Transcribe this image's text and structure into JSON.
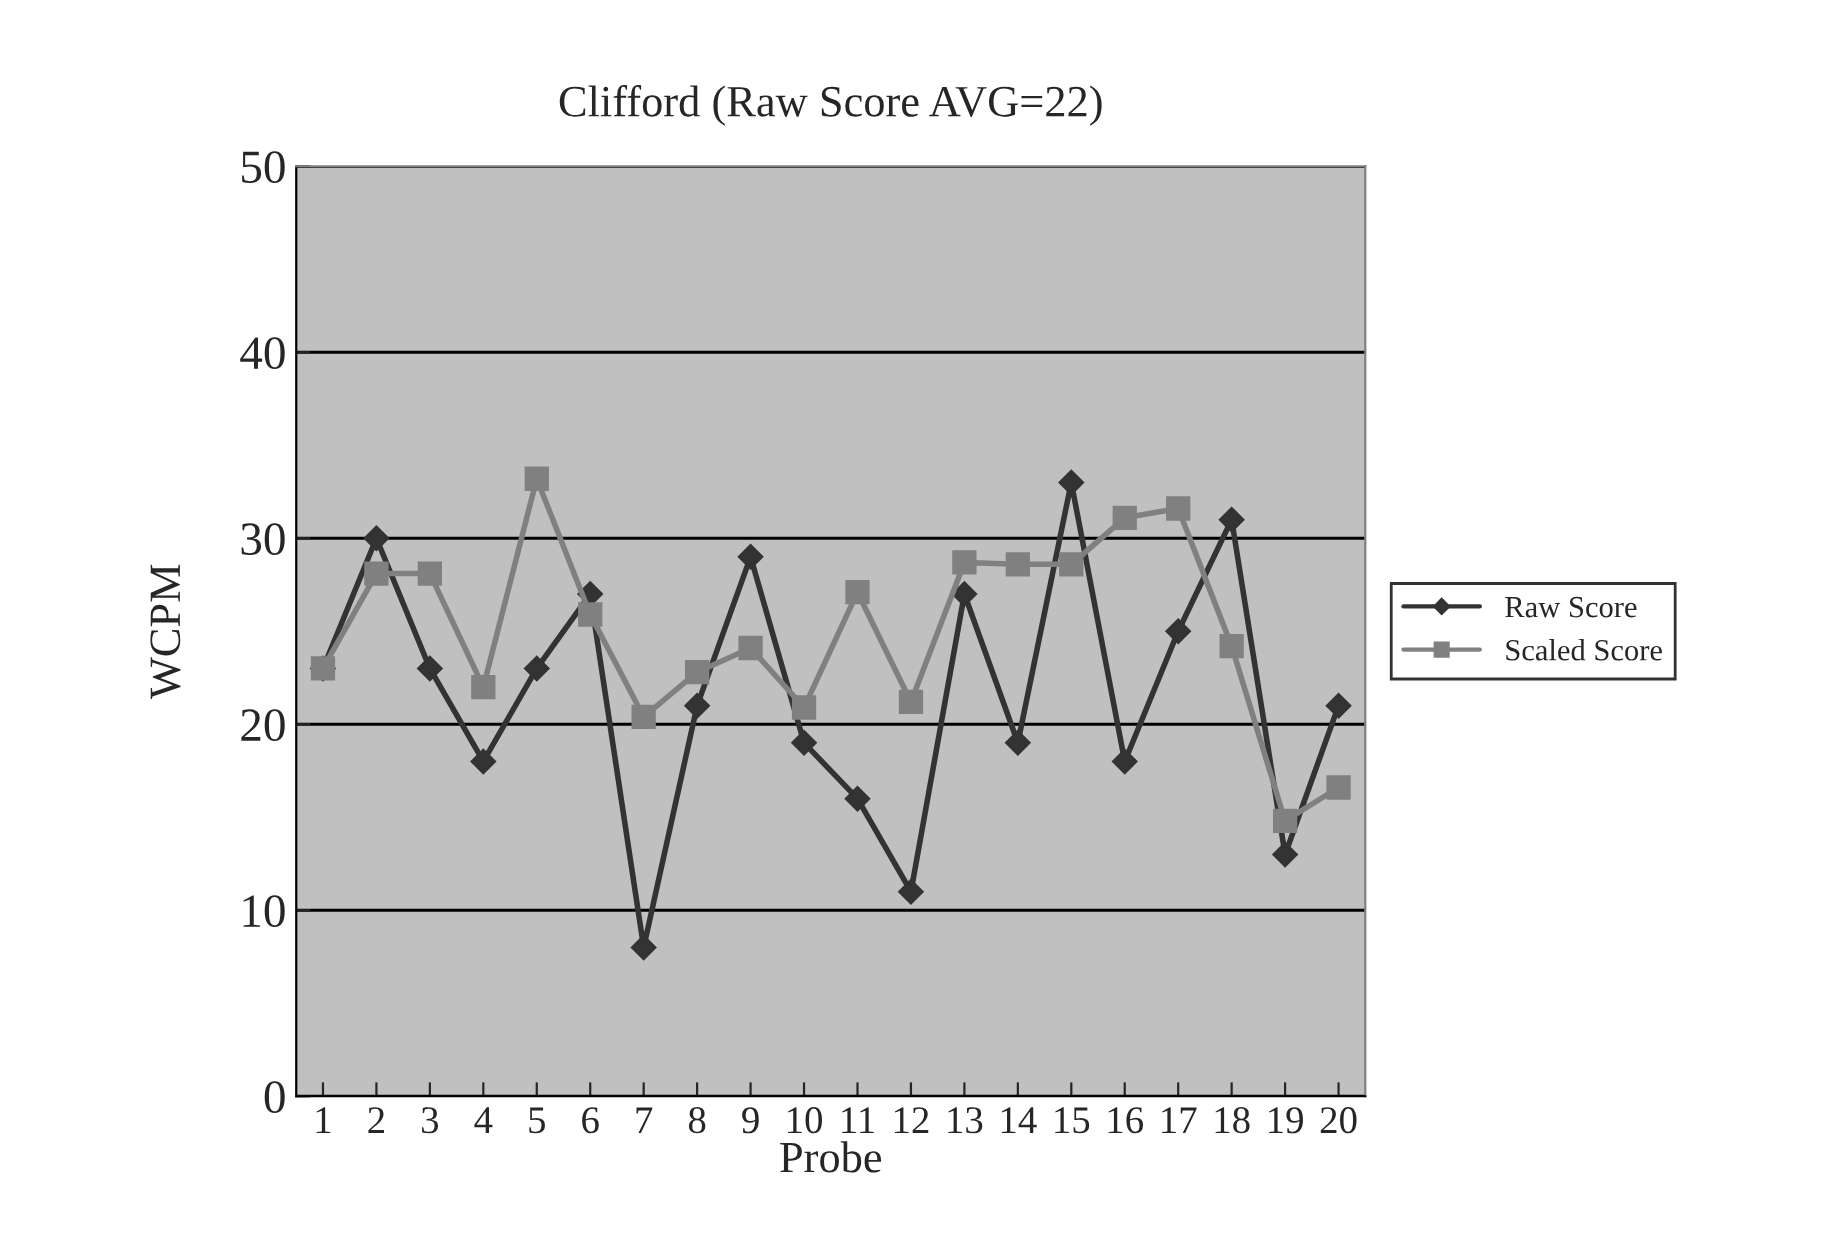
{
  "chart_data": {
    "type": "line",
    "title": "Clifford (Raw Score AVG=22)",
    "xlabel": "Probe",
    "ylabel": "WCPM",
    "categories": [
      "1",
      "2",
      "3",
      "4",
      "5",
      "6",
      "7",
      "8",
      "9",
      "10",
      "11",
      "12",
      "13",
      "14",
      "15",
      "16",
      "17",
      "18",
      "19",
      "20"
    ],
    "series": [
      {
        "name": "Raw Score",
        "color": "#333333",
        "marker": "diamond",
        "values": [
          23,
          30,
          23,
          18,
          23,
          27,
          8,
          21,
          29,
          19,
          16,
          11,
          27,
          19,
          33,
          18,
          25,
          31,
          13,
          21
        ]
      },
      {
        "name": "Scaled Score",
        "color": "#808080",
        "marker": "square",
        "values": [
          23,
          28.1,
          28.1,
          22,
          33.2,
          25.9,
          20.4,
          22.8,
          24.1,
          20.9,
          27.1,
          21.2,
          28.7,
          28.6,
          28.6,
          31.1,
          31.6,
          24.2,
          14.8,
          16.6
        ]
      }
    ],
    "ylim": [
      0,
      50
    ],
    "yticks": [
      0,
      10,
      20,
      30,
      40,
      50
    ],
    "grid": "y",
    "legend": "right",
    "line_style": "solid"
  }
}
